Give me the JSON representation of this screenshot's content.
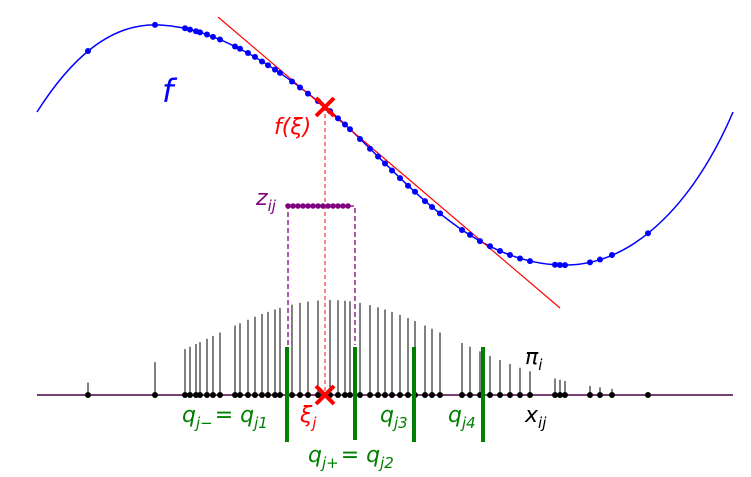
{
  "labels": {
    "f": "f",
    "f_xi": "f(ξ)",
    "z": [
      "z",
      "ij"
    ],
    "pi": [
      "π",
      "i"
    ],
    "x": [
      "x",
      "ij"
    ],
    "xi": [
      "ξ",
      "j"
    ],
    "q_minus": [
      "q",
      "j−",
      "= q",
      "j1"
    ],
    "q3": [
      "q",
      "j3"
    ],
    "q4": [
      "q",
      "j4"
    ],
    "q_plus": [
      "q",
      "j+",
      "= q",
      "j2"
    ]
  }
}
